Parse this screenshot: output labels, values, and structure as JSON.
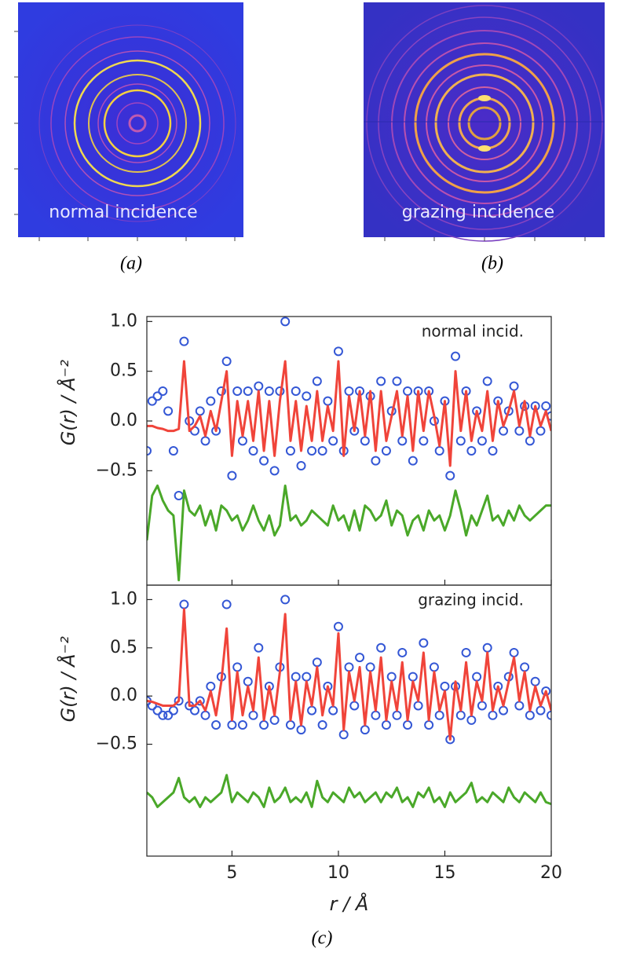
{
  "figure": {
    "panel_a": {
      "label": "normal incidence",
      "caption": "(a)"
    },
    "panel_b": {
      "label": "grazing incidence",
      "caption": "(b)"
    },
    "panel_c": {
      "caption": "(c)"
    }
  },
  "chart_data": [
    {
      "type": "line",
      "annotation": "normal incid.",
      "ylabel": "G(r) / Å⁻²",
      "xlim": [
        1,
        20
      ],
      "ylim": [
        -1.65,
        1.05
      ],
      "yticks": [
        {
          "value": 1,
          "label": "1.0"
        },
        {
          "value": 0.5,
          "label": "0.5"
        },
        {
          "value": 0,
          "label": "0.0"
        },
        {
          "value": -0.5,
          "label": "−0.5"
        }
      ],
      "x": [
        1,
        1.25,
        1.5,
        1.75,
        2,
        2.25,
        2.5,
        2.75,
        3,
        3.25,
        3.5,
        3.75,
        4,
        4.25,
        4.5,
        4.75,
        5,
        5.25,
        5.5,
        5.75,
        6,
        6.25,
        6.5,
        6.75,
        7,
        7.25,
        7.5,
        7.75,
        8,
        8.25,
        8.5,
        8.75,
        9,
        9.25,
        9.5,
        9.75,
        10,
        10.25,
        10.5,
        10.75,
        11,
        11.25,
        11.5,
        11.75,
        12,
        12.25,
        12.5,
        12.75,
        13,
        13.25,
        13.5,
        13.75,
        14,
        14.25,
        14.5,
        14.75,
        15,
        15.25,
        15.5,
        15.75,
        16,
        16.25,
        16.5,
        16.75,
        17,
        17.25,
        17.5,
        17.75,
        18,
        18.25,
        18.5,
        18.75,
        19,
        19.25,
        19.5,
        19.75,
        20
      ],
      "series": [
        {
          "color": "#3457d5",
          "marker": "circle",
          "values": [
            -0.3,
            0.2,
            0.25,
            0.3,
            0.1,
            -0.3,
            -0.75,
            0.8,
            0.0,
            -0.1,
            0.1,
            -0.2,
            0.2,
            -0.1,
            0.3,
            0.6,
            -0.55,
            0.3,
            -0.2,
            0.3,
            -0.3,
            0.35,
            -0.4,
            0.3,
            -0.5,
            0.3,
            1.0,
            -0.3,
            0.3,
            -0.45,
            0.25,
            -0.3,
            0.4,
            -0.3,
            0.2,
            -0.2,
            0.7,
            -0.3,
            0.3,
            -0.1,
            0.3,
            -0.2,
            0.25,
            -0.4,
            0.4,
            -0.3,
            0.1,
            0.4,
            -0.2,
            0.3,
            -0.4,
            0.3,
            -0.2,
            0.3,
            0.0,
            -0.3,
            0.2,
            -0.55,
            0.65,
            -0.2,
            0.3,
            -0.3,
            0.1,
            -0.2,
            0.4,
            -0.3,
            0.2,
            -0.1,
            0.1,
            0.35,
            -0.1,
            0.15,
            -0.2,
            0.15,
            -0.1,
            0.15,
            0.05
          ]
        },
        {
          "color": "#f0443a",
          "marker": "none",
          "values": [
            -0.05,
            -0.05,
            -0.07,
            -0.08,
            -0.1,
            -0.1,
            -0.08,
            0.6,
            -0.1,
            -0.05,
            0.05,
            -0.15,
            0.1,
            -0.1,
            0.2,
            0.5,
            -0.35,
            0.2,
            -0.15,
            0.2,
            -0.2,
            0.3,
            -0.3,
            0.2,
            -0.35,
            0.2,
            0.6,
            -0.2,
            0.2,
            -0.3,
            0.15,
            -0.2,
            0.3,
            -0.2,
            0.15,
            -0.1,
            0.6,
            -0.35,
            0.25,
            -0.1,
            0.3,
            -0.15,
            0.3,
            -0.3,
            0.3,
            -0.2,
            0.05,
            0.3,
            -0.15,
            0.25,
            -0.3,
            0.3,
            -0.1,
            0.3,
            0.05,
            -0.25,
            0.2,
            -0.45,
            0.5,
            -0.1,
            0.3,
            -0.2,
            0.1,
            -0.1,
            0.3,
            -0.2,
            0.2,
            -0.05,
            0.1,
            0.3,
            -0.05,
            0.2,
            -0.15,
            0.15,
            -0.05,
            0.1,
            -0.1
          ]
        },
        {
          "color": "#4aa829",
          "marker": "none",
          "values": [
            -1.2,
            -0.75,
            -0.65,
            -0.8,
            -0.9,
            -0.95,
            -1.6,
            -0.7,
            -0.9,
            -0.95,
            -0.85,
            -1.05,
            -0.9,
            -1.1,
            -0.85,
            -0.9,
            -1.0,
            -0.95,
            -1.1,
            -1.0,
            -0.85,
            -1.0,
            -1.1,
            -0.95,
            -1.15,
            -1.05,
            -0.65,
            -1.0,
            -0.95,
            -1.05,
            -1.0,
            -0.9,
            -0.95,
            -1.0,
            -1.05,
            -0.85,
            -1.0,
            -0.95,
            -1.1,
            -0.9,
            -1.1,
            -0.85,
            -0.9,
            -1.0,
            -0.95,
            -0.8,
            -1.05,
            -0.9,
            -0.95,
            -1.15,
            -1.0,
            -0.95,
            -1.1,
            -0.9,
            -1.0,
            -0.95,
            -1.1,
            -0.95,
            -0.7,
            -0.9,
            -1.15,
            -0.95,
            -1.05,
            -0.9,
            -0.75,
            -1.0,
            -0.95,
            -1.05,
            -0.9,
            -1.0,
            -0.85,
            -0.95,
            -1.0,
            -0.95,
            -0.9,
            -0.85,
            -0.85
          ]
        }
      ]
    },
    {
      "type": "line",
      "annotation": "grazing incid.",
      "ylabel": "G(r) / Å⁻²",
      "xlabel": "r / Å",
      "xlim": [
        1,
        20
      ],
      "ylim": [
        -1.66,
        1.15
      ],
      "xticks": [
        5,
        10,
        15,
        20
      ],
      "yticks": [
        {
          "value": 1,
          "label": "1.0"
        },
        {
          "value": 0.5,
          "label": "0.5"
        },
        {
          "value": 0,
          "label": "0.0"
        },
        {
          "value": -0.5,
          "label": "−0.5"
        }
      ],
      "x": [
        1,
        1.25,
        1.5,
        1.75,
        2,
        2.25,
        2.5,
        2.75,
        3,
        3.25,
        3.5,
        3.75,
        4,
        4.25,
        4.5,
        4.75,
        5,
        5.25,
        5.5,
        5.75,
        6,
        6.25,
        6.5,
        6.75,
        7,
        7.25,
        7.5,
        7.75,
        8,
        8.25,
        8.5,
        8.75,
        9,
        9.25,
        9.5,
        9.75,
        10,
        10.25,
        10.5,
        10.75,
        11,
        11.25,
        11.5,
        11.75,
        12,
        12.25,
        12.5,
        12.75,
        13,
        13.25,
        13.5,
        13.75,
        14,
        14.25,
        14.5,
        14.75,
        15,
        15.25,
        15.5,
        15.75,
        16,
        16.25,
        16.5,
        16.75,
        17,
        17.25,
        17.5,
        17.75,
        18,
        18.25,
        18.5,
        18.75,
        19,
        19.25,
        19.5,
        19.75,
        20
      ],
      "series": [
        {
          "color": "#3457d5",
          "marker": "circle",
          "values": [
            -0.05,
            -0.1,
            -0.15,
            -0.2,
            -0.2,
            -0.15,
            -0.05,
            0.95,
            -0.1,
            -0.15,
            -0.05,
            -0.2,
            0.1,
            -0.3,
            0.2,
            0.95,
            -0.3,
            0.3,
            -0.3,
            0.15,
            -0.2,
            0.5,
            -0.3,
            0.1,
            -0.25,
            0.3,
            1.0,
            -0.3,
            0.2,
            -0.35,
            0.2,
            -0.15,
            0.35,
            -0.3,
            0.1,
            -0.15,
            0.72,
            -0.4,
            0.3,
            -0.1,
            0.4,
            -0.35,
            0.3,
            -0.2,
            0.5,
            -0.3,
            0.2,
            -0.2,
            0.45,
            -0.3,
            0.2,
            -0.1,
            0.55,
            -0.3,
            0.3,
            -0.2,
            0.1,
            -0.45,
            0.1,
            -0.2,
            0.45,
            -0.25,
            0.2,
            -0.1,
            0.5,
            -0.2,
            0.1,
            -0.15,
            0.2,
            0.45,
            -0.1,
            0.3,
            -0.2,
            0.15,
            -0.15,
            0.05,
            -0.2
          ]
        },
        {
          "color": "#f0443a",
          "marker": "none",
          "values": [
            -0.05,
            -0.06,
            -0.08,
            -0.1,
            -0.1,
            -0.1,
            -0.05,
            0.9,
            -0.1,
            -0.1,
            -0.05,
            -0.15,
            0.05,
            -0.2,
            0.15,
            0.7,
            -0.25,
            0.25,
            -0.2,
            0.1,
            -0.15,
            0.4,
            -0.25,
            0.1,
            -0.2,
            0.25,
            0.85,
            -0.25,
            0.15,
            -0.3,
            0.15,
            -0.1,
            0.3,
            -0.2,
            0.1,
            -0.1,
            0.65,
            -0.35,
            0.25,
            -0.05,
            0.3,
            -0.3,
            0.25,
            -0.15,
            0.4,
            -0.25,
            0.15,
            -0.15,
            0.35,
            -0.25,
            0.15,
            -0.05,
            0.45,
            -0.25,
            0.25,
            -0.15,
            0.05,
            -0.45,
            0.15,
            -0.15,
            0.35,
            -0.2,
            0.15,
            -0.05,
            0.45,
            -0.15,
            0.1,
            -0.1,
            0.15,
            0.4,
            -0.05,
            0.25,
            -0.15,
            0.1,
            -0.1,
            0.05,
            -0.15
          ]
        },
        {
          "color": "#4aa829",
          "marker": "none",
          "values": [
            -1.0,
            -1.05,
            -1.15,
            -1.1,
            -1.05,
            -1.0,
            -0.85,
            -1.05,
            -1.1,
            -1.05,
            -1.15,
            -1.05,
            -1.1,
            -1.05,
            -1.0,
            -0.82,
            -1.1,
            -1.0,
            -1.05,
            -1.1,
            -1.0,
            -1.05,
            -1.15,
            -0.95,
            -1.1,
            -1.05,
            -0.95,
            -1.1,
            -1.05,
            -1.1,
            -1.0,
            -1.15,
            -0.88,
            -1.05,
            -1.1,
            -1.0,
            -1.05,
            -1.1,
            -0.95,
            -1.05,
            -1.0,
            -1.1,
            -1.05,
            -1.0,
            -1.1,
            -1.0,
            -1.05,
            -0.95,
            -1.1,
            -1.05,
            -1.15,
            -1.0,
            -1.05,
            -0.95,
            -1.1,
            -1.05,
            -1.15,
            -1.0,
            -1.1,
            -1.05,
            -1.0,
            -0.9,
            -1.1,
            -1.05,
            -1.1,
            -1.0,
            -1.05,
            -1.1,
            -0.95,
            -1.05,
            -1.1,
            -1.0,
            -1.05,
            -1.1,
            -1.0,
            -1.1,
            -1.12
          ]
        }
      ]
    }
  ]
}
